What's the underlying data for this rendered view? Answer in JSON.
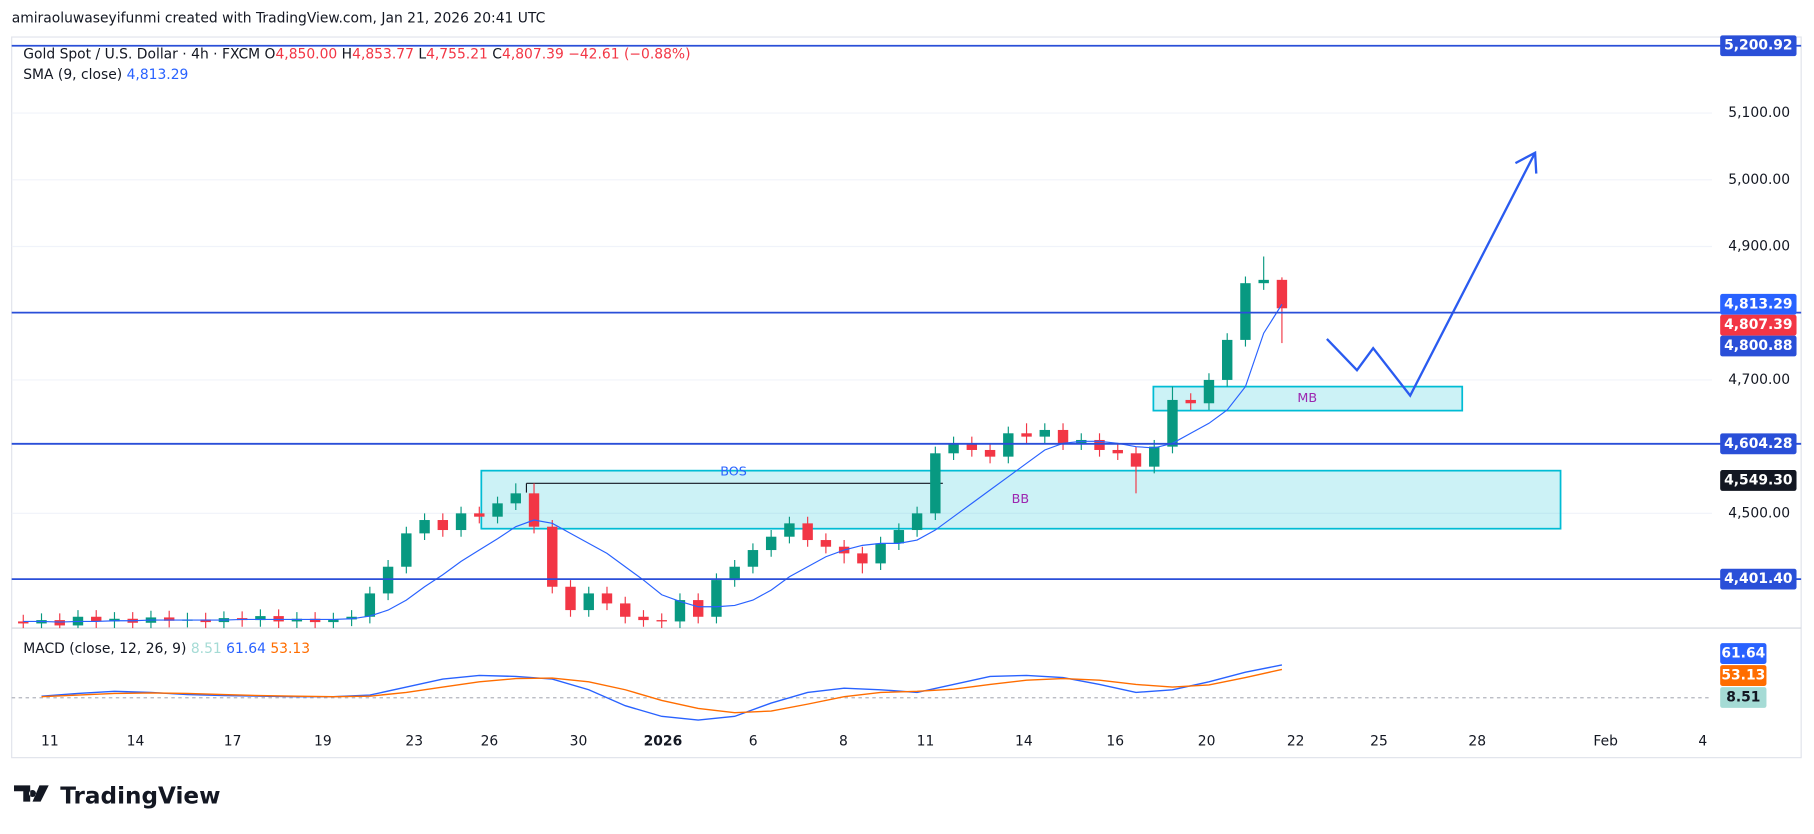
{
  "header": "amiraoluwaseyifunmi created with TradingView.com, Jan 21, 2026 20:41 UTC",
  "brand": "TradingView",
  "chart_data": {
    "type": "candlestick",
    "title": "Gold Spot / U.S. Dollar · 4h · FXCM",
    "legend_values": {
      "o": "O",
      "open": "4,850.00",
      "h": "H",
      "high": "4,853.77",
      "l": "L",
      "low": "4,755.21",
      "c": "C",
      "close": "4,807.39",
      "change": "−42.61 (−0.88%)"
    },
    "up_color": "#089981",
    "down_color": "#f23645",
    "candles": {
      "open": [
        4338,
        4335,
        4340,
        4332,
        4345,
        4338,
        4342,
        4336,
        4344,
        4339,
        4341,
        4337,
        4343,
        4340,
        4346,
        4338,
        4342,
        4337,
        4341,
        4345,
        4380,
        4420,
        4470,
        4490,
        4475,
        4500,
        4495,
        4515,
        4530,
        4480,
        4390,
        4355,
        4380,
        4365,
        4345,
        4340,
        4338,
        4370,
        4345,
        4400,
        4420,
        4445,
        4465,
        4485,
        4460,
        4450,
        4440,
        4425,
        4455,
        4475,
        4500,
        4590,
        4605,
        4595,
        4585,
        4620,
        4615,
        4625,
        4605,
        4610,
        4595,
        4590,
        4570,
        4600,
        4670,
        4665,
        4700,
        4760,
        4845,
        4850
      ],
      "high": [
        4348,
        4350,
        4350,
        4355,
        4355,
        4352,
        4352,
        4354,
        4354,
        4351,
        4351,
        4353,
        4353,
        4356,
        4356,
        4352,
        4352,
        4351,
        4355,
        4390,
        4430,
        4480,
        4500,
        4500,
        4510,
        4510,
        4525,
        4545,
        4545,
        4490,
        4400,
        4390,
        4390,
        4375,
        4355,
        4350,
        4380,
        4380,
        4410,
        4430,
        4455,
        4475,
        4495,
        4495,
        4470,
        4460,
        4450,
        4465,
        4485,
        4510,
        4600,
        4615,
        4615,
        4605,
        4630,
        4635,
        4635,
        4635,
        4620,
        4620,
        4605,
        4600,
        4610,
        4690,
        4680,
        4710,
        4770,
        4855,
        4885,
        4853.77
      ],
      "low": [
        4325,
        4325,
        4322,
        4322,
        4328,
        4328,
        4326,
        4326,
        4329,
        4329,
        4327,
        4327,
        4330,
        4330,
        4328,
        4328,
        4327,
        4327,
        4331,
        4335,
        4370,
        4410,
        4460,
        4465,
        4465,
        4485,
        4485,
        4505,
        4470,
        4380,
        4345,
        4345,
        4355,
        4335,
        4330,
        4328,
        4328,
        4335,
        4335,
        4390,
        4410,
        4435,
        4455,
        4450,
        4440,
        4425,
        4410,
        4415,
        4445,
        4465,
        4490,
        4580,
        4585,
        4575,
        4575,
        4605,
        4605,
        4595,
        4595,
        4585,
        4580,
        4530,
        4560,
        4590,
        4655,
        4655,
        4690,
        4750,
        4835,
        4755.21
      ],
      "close": [
        4335,
        4340,
        4332,
        4345,
        4338,
        4342,
        4336,
        4344,
        4339,
        4341,
        4337,
        4343,
        4340,
        4346,
        4338,
        4342,
        4337,
        4341,
        4345,
        4380,
        4420,
        4470,
        4490,
        4475,
        4500,
        4495,
        4515,
        4530,
        4480,
        4390,
        4355,
        4380,
        4365,
        4345,
        4340,
        4338,
        4370,
        4345,
        4400,
        4420,
        4445,
        4465,
        4485,
        4460,
        4450,
        4440,
        4425,
        4455,
        4475,
        4500,
        4590,
        4605,
        4595,
        4585,
        4620,
        4615,
        4625,
        4605,
        4610,
        4595,
        4590,
        4570,
        4600,
        4670,
        4665,
        4700,
        4760,
        4845,
        4850,
        4807.39
      ]
    },
    "sma": {
      "name": "SMA (9, close)",
      "label": "4,813.29",
      "color": "#2962ff",
      "values": [
        4338,
        4338,
        4337,
        4338,
        4338,
        4339,
        4339,
        4340,
        4340,
        4340,
        4340,
        4340,
        4341,
        4341,
        4341,
        4341,
        4341,
        4341,
        4342,
        4346,
        4355,
        4370,
        4390,
        4408,
        4428,
        4445,
        4462,
        4480,
        4490,
        4485,
        4470,
        4455,
        4440,
        4420,
        4400,
        4378,
        4368,
        4360,
        4360,
        4362,
        4370,
        4385,
        4405,
        4420,
        4435,
        4445,
        4452,
        4455,
        4455,
        4460,
        4475,
        4495,
        4515,
        4535,
        4555,
        4575,
        4595,
        4605,
        4608,
        4608,
        4605,
        4600,
        4598,
        4605,
        4620,
        4635,
        4655,
        4690,
        4770,
        4813.29
      ]
    },
    "ylim": [
      4328,
      5214
    ],
    "yticks": [
      {
        "value": 4500,
        "label": "4,500.00"
      },
      {
        "value": 4700,
        "label": "4,700.00"
      },
      {
        "value": 4900,
        "label": "4,900.00"
      },
      {
        "value": 5000,
        "label": "5,000.00"
      },
      {
        "value": 5100,
        "label": "5,100.00"
      }
    ],
    "levels": [
      {
        "value": 5200.92,
        "label": "5,200.92",
        "color": "#2a4fd8",
        "line": true
      },
      {
        "value": 4813.29,
        "label": "4,813.29",
        "color": "#2962ff",
        "line": false
      },
      {
        "value": 4807.39,
        "label": "4,807.39",
        "color": "#f23645",
        "line": false
      },
      {
        "value": 4800.88,
        "label": "4,800.88",
        "color": "#2a4fd8",
        "line": true
      },
      {
        "value": 4604.28,
        "label": "4,604.28",
        "color": "#2a4fd8",
        "line": true
      },
      {
        "value": 4549.3,
        "label": "4,549.30",
        "color": "#131722",
        "line": false
      },
      {
        "value": 4401.4,
        "label": "4,401.40",
        "color": "#2a4fd8",
        "line": true
      }
    ],
    "zones": [
      {
        "label": "BB",
        "top": 4564,
        "bottom": 4477
      },
      {
        "label": "MB",
        "top": 4690,
        "bottom": 4654
      }
    ],
    "bos": {
      "label": "BOS",
      "value": 4545
    },
    "xticks": [
      "11",
      "14",
      "17",
      "19",
      "23",
      "26",
      "30",
      "2026",
      "6",
      "8",
      "11",
      "14",
      "16",
      "20",
      "22",
      "25",
      "28",
      "Feb",
      "4"
    ],
    "macd": {
      "title": "MACD (close, 12, 26, 9)",
      "ylim": [
        -80,
        120
      ],
      "histogram_last": 8.51,
      "histogram_color": "#a5dbd5",
      "series": [
        {
          "name": "MACD",
          "color": "#2962ff",
          "values": [
            3,
            8,
            12,
            10,
            6,
            4,
            3,
            2,
            2,
            5,
            20,
            35,
            42,
            40,
            35,
            15,
            -15,
            -35,
            -42,
            -35,
            -10,
            10,
            18,
            15,
            10,
            25,
            40,
            42,
            38,
            25,
            10,
            15,
            30,
            48,
            61.64
          ]
        },
        {
          "name": "Signal",
          "color": "#ff6d00",
          "values": [
            2,
            5,
            8,
            9,
            8,
            6,
            4,
            3,
            2,
            3,
            10,
            20,
            30,
            36,
            37,
            30,
            15,
            -5,
            -20,
            -28,
            -25,
            -12,
            2,
            10,
            12,
            16,
            25,
            33,
            36,
            33,
            25,
            20,
            24,
            38,
            53.13
          ]
        }
      ]
    }
  }
}
